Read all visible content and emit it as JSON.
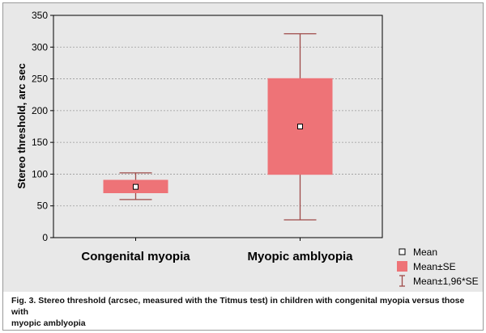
{
  "chart_data": {
    "type": "box",
    "ylabel": "Stereo threshold, arc sec",
    "xlabel": "",
    "ylim": [
      0,
      350
    ],
    "yticks": [
      0,
      50,
      100,
      150,
      200,
      250,
      300,
      350
    ],
    "grid": true,
    "legend_position": "bottom-right",
    "categories": [
      "Congenital myopia",
      "Myopic amblyopia"
    ],
    "series": [
      {
        "category": "Congenital myopia",
        "mean": 80,
        "se_low": 70,
        "se_high": 91,
        "ci_low": 60,
        "ci_high": 102
      },
      {
        "category": "Myopic amblyopia",
        "mean": 175,
        "se_low": 99,
        "se_high": 251,
        "ci_low": 28,
        "ci_high": 321
      }
    ],
    "legend": [
      {
        "symbol": "mean-marker",
        "label": "Mean"
      },
      {
        "symbol": "se-box",
        "label": "Mean±SE"
      },
      {
        "symbol": "ci-whisker",
        "label": "Mean±1,96*SE"
      }
    ],
    "colors": {
      "box": "#ee7377",
      "whisker": "#9e4a48",
      "grid": "#9a9a9a",
      "frame": "#000000"
    }
  },
  "caption": {
    "line1": "Fig. 3. Stereo threshold (arcsec, measured with the Titmus test) in children with congenital myopia versus those with",
    "line2": "myopic amblyopia"
  }
}
